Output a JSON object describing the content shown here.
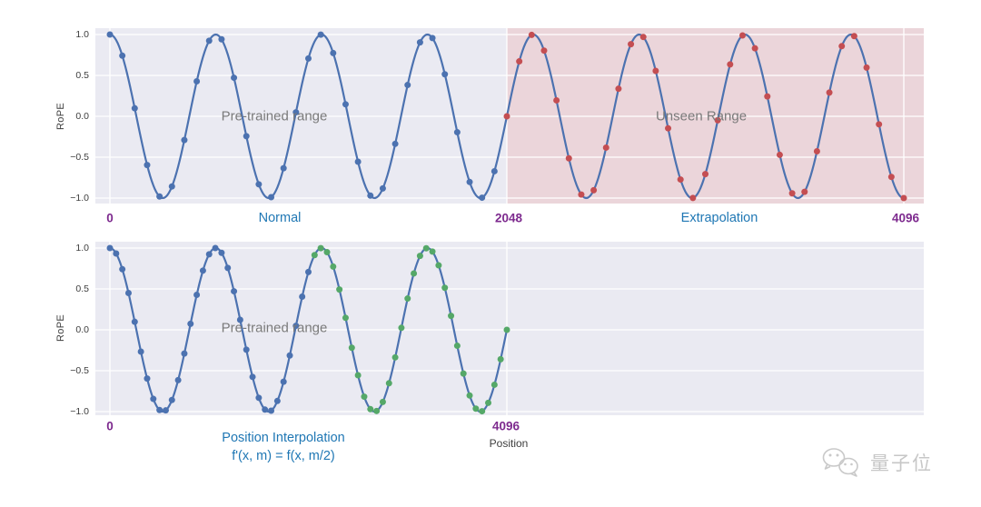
{
  "figure": {
    "watermark": {
      "text": "量子位",
      "icon": "wechat-chat-bubbles-icon"
    }
  },
  "chart_data": [
    {
      "type": "line+scatter",
      "ylabel": "RoPE",
      "yticks": [
        "1.0",
        "0.5",
        "0.0",
        "−0.5",
        "−1.0"
      ],
      "ytick_values": [
        1.0,
        0.5,
        0.0,
        -0.5,
        -1.0
      ],
      "xtick_values": [
        0,
        2048,
        4096
      ],
      "x_range": [
        0,
        4096
      ],
      "ylim": [
        -1.08,
        1.08
      ],
      "grid": true,
      "curve_function": "cos(2*pi*x/546.13)",
      "period": 546.133,
      "line_color": "#4c72b0",
      "series": [
        {
          "name": "Normal",
          "role": "pre-trained positions",
          "color": "#4c72b0",
          "x_start": 0,
          "x_end": 1984,
          "step": 64
        },
        {
          "name": "Extrapolation",
          "role": "unseen positions",
          "color": "#c44e52",
          "x_start": 2048,
          "x_end": 4096,
          "step": 64
        }
      ],
      "shaded_region": {
        "x_start": 2048,
        "x_end": 4300,
        "fill": "#ebd5da",
        "label": "Unseen Range"
      },
      "annotation": "Pre-trained range",
      "axis_labels": {
        "x0": "0",
        "left_label": "Normal",
        "x_mid": "2048",
        "right_label": "Extrapolation",
        "x_max": "4096"
      }
    },
    {
      "type": "line+scatter",
      "ylabel": "RoPE",
      "yticks": [
        "1.0",
        "0.5",
        "0.0",
        "−0.5",
        "−1.0"
      ],
      "ytick_values": [
        1.0,
        0.5,
        0.0,
        -0.5,
        -1.0
      ],
      "xtick_values": [
        0,
        4096
      ],
      "x_range": [
        0,
        4096
      ],
      "ylim": [
        -1.08,
        1.08
      ],
      "grid": true,
      "curve_function": "cos(2*pi*x/1092.27)",
      "period": 1092.267,
      "line_color": "#4c72b0",
      "series": [
        {
          "name": "Pre-trained",
          "role": "pre-trained positions",
          "color": "#4c72b0",
          "x_start": 0,
          "x_end": 2048,
          "step": 64
        },
        {
          "name": "Position Interpolation",
          "role": "interpolated positions",
          "color": "#55a868",
          "x_start": 2112,
          "x_end": 4096,
          "step": 64
        }
      ],
      "shaded_region": null,
      "annotation": "Pre-trained range",
      "axis_labels": {
        "x0": "0",
        "left_label": "Position Interpolation",
        "formula": "f'(x, m) = f(x, m/2)",
        "x_max": "4096",
        "xlabel": "Position"
      }
    }
  ]
}
